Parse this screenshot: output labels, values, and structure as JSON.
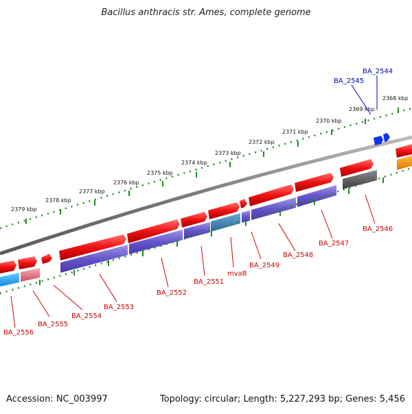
{
  "title": "Bacillus anthracis str. Ames, complete genome",
  "footer": {
    "accession": "Accession: NC_003997",
    "topology": "Topology: circular; Length: 5,227,293 bp; Genes: 5,456"
  },
  "ruler_ticks": [
    "2379 kbp",
    "2378 kbp",
    "2377 kbp",
    "2376 kbp",
    "2375 kbp",
    "2374 kbp",
    "2373 kbp",
    "2372 kbp",
    "2371 kbp",
    "2370 kbp",
    "2369 kbp",
    "2368 kbp"
  ],
  "gene_labels": [
    {
      "text": "BA_2556",
      "color": "red"
    },
    {
      "text": "BA_2555",
      "color": "red"
    },
    {
      "text": "BA_2554",
      "color": "red"
    },
    {
      "text": "BA_2553",
      "color": "red"
    },
    {
      "text": "BA_2552",
      "color": "red"
    },
    {
      "text": "BA_2551",
      "color": "red"
    },
    {
      "text": "mvaB",
      "color": "red"
    },
    {
      "text": "BA_2549",
      "color": "red"
    },
    {
      "text": "BA_2548",
      "color": "red"
    },
    {
      "text": "BA_2547",
      "color": "red"
    },
    {
      "text": "BA_2546",
      "color": "red"
    },
    {
      "text": "BA_2545",
      "color": "blue"
    },
    {
      "text": "BA_2544",
      "color": "blue"
    }
  ],
  "colors": {
    "backbone": "#7a7a7a",
    "ruler": "#1e8a1e",
    "gene_red": "#ee1111",
    "cds_purple": "#6655cc",
    "cds_teal": "#3a7fb0",
    "cds_cyan": "#22aaee",
    "cds_pink": "#e07080",
    "cds_gray": "#555555",
    "gene_blue": "#1133ee",
    "gene_orange": "#ee8800"
  }
}
